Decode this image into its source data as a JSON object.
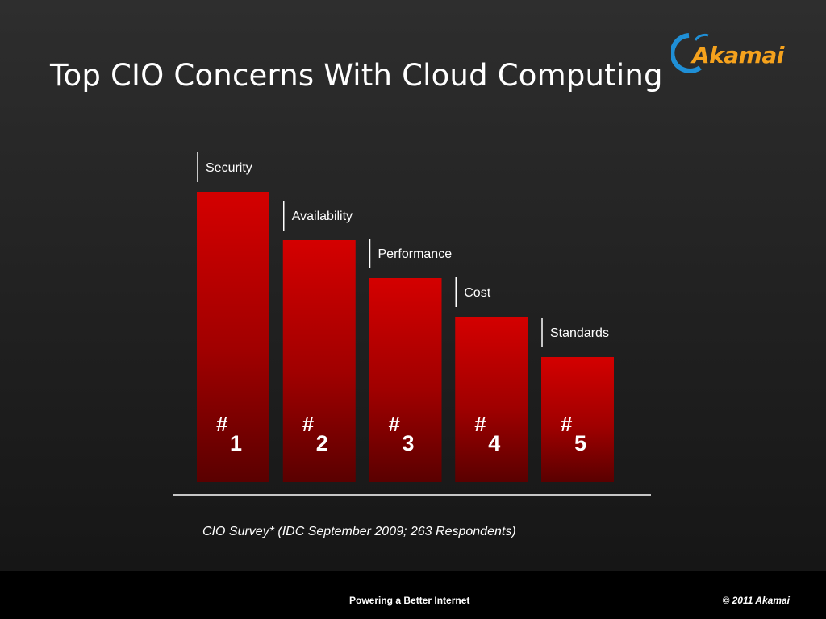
{
  "slide": {
    "title": "Top CIO Concerns With Cloud Computing",
    "caption": "CIO Survey* (IDC September 2009; 263 Respondents)"
  },
  "logo": {
    "text": "Akamai",
    "icon": "akamai-swoosh-icon"
  },
  "footer": {
    "tagline": "Powering a Better Internet",
    "copyright": "© 2011 Akamai"
  },
  "colors": {
    "bar_top": "#d40000",
    "bar_bottom": "#5a0000",
    "logo": "#f5a21d"
  },
  "chart_data": {
    "type": "bar",
    "categories": [
      "Security",
      "Availability",
      "Performance",
      "Cost",
      "Standards"
    ],
    "rank_symbol": "#",
    "ranks": [
      "1",
      "2",
      "3",
      "4",
      "5"
    ],
    "values": [
      360,
      300,
      253,
      205,
      155
    ],
    "ylim": [
      0,
      360
    ],
    "grid": false,
    "legend": "none"
  }
}
